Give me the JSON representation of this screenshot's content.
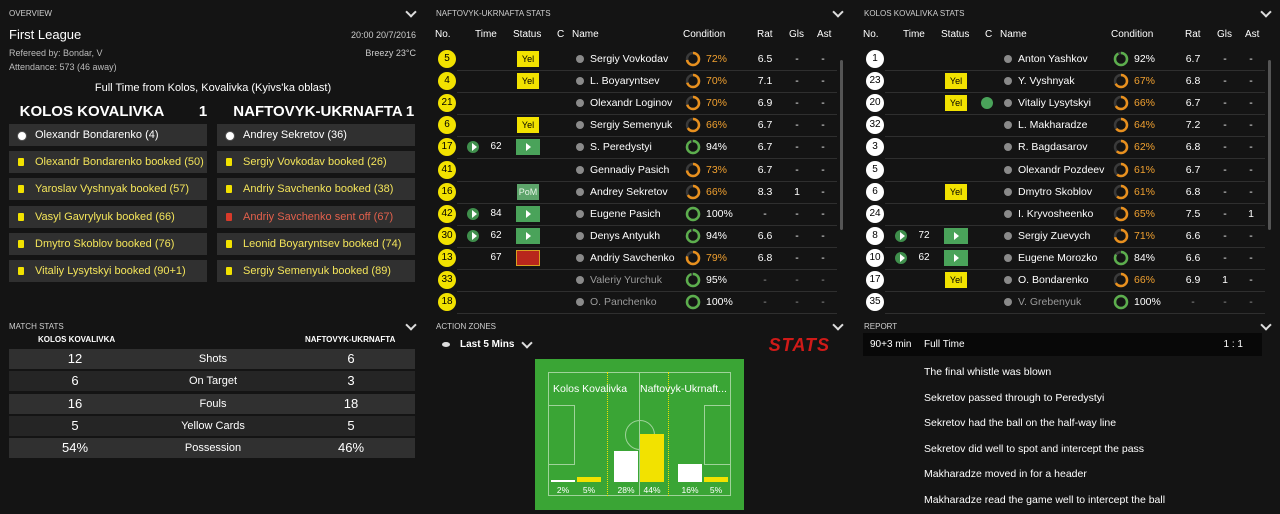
{
  "panels": {
    "overview": "OVERVIEW",
    "away_stats": "NAFTOVYK-UKRNAFTA STATS",
    "home_stats": "KOLOS KOVALIVKA STATS",
    "match_stats": "MATCH STATS",
    "action_zones": "ACTION ZONES",
    "report": "REPORT"
  },
  "overview": {
    "league": "First League",
    "datetime": "20:00 20/7/2016",
    "referee": "Refereed by: Bondar, V",
    "weather": "Breezy 23°C",
    "attendance": "Attendance: 573 (46 away)",
    "result": "Full Time from Kolos, Kovalivka (Kyivs'ka oblast)",
    "home": {
      "team": "KOLOS KOVALIVKA",
      "score": 1,
      "events": [
        {
          "kind": "goal",
          "text": "Olexandr Bondarenko (4)"
        },
        {
          "kind": "yellow",
          "text": "Olexandr Bondarenko booked (50)"
        },
        {
          "kind": "yellow",
          "text": "Yaroslav Vyshnyak booked (57)"
        },
        {
          "kind": "yellow",
          "text": "Vasyl Gavrylyuk booked (66)"
        },
        {
          "kind": "yellow",
          "text": "Dmytro Skoblov booked (76)"
        },
        {
          "kind": "yellow",
          "text": "Vitaliy Lysytskyi booked (90+1)"
        }
      ]
    },
    "away": {
      "team": "NAFTOVYK-UKRNAFTA",
      "score": 1,
      "events": [
        {
          "kind": "goal",
          "text": "Andrey Sekretov (36)"
        },
        {
          "kind": "yellow",
          "text": "Sergiy Vovkodav booked (26)"
        },
        {
          "kind": "yellow",
          "text": "Andriy Savchenko booked (38)"
        },
        {
          "kind": "red",
          "text": "Andriy Savchenko sent off (67)"
        },
        {
          "kind": "yellow",
          "text": "Leonid Boyaryntsev booked (74)"
        },
        {
          "kind": "yellow",
          "text": "Sergiy Semenyuk booked (89)"
        }
      ]
    }
  },
  "columns": [
    "No.",
    "Time",
    "Status",
    "C",
    "Name",
    "Condition",
    "Rat",
    "Gls",
    "Ast"
  ],
  "player_tables": [
    {
      "number_color": "#f2e200",
      "rows": [
        {
          "no": 5,
          "status": "Yel",
          "name": "Sergiy Vovkodav",
          "condition": 72,
          "condition_label": "72%",
          "rat": 6.5,
          "gls": "-",
          "ast": "-"
        },
        {
          "no": 4,
          "status": "Yel",
          "name": "L. Boyaryntsev",
          "condition": 70,
          "condition_label": "70%",
          "rat": 7.1,
          "gls": "-",
          "ast": "-"
        },
        {
          "no": 21,
          "name": "Olexandr Loginov",
          "condition": 70,
          "condition_label": "70%",
          "rat": 6.9,
          "gls": "-",
          "ast": "-"
        },
        {
          "no": 6,
          "status": "Yel",
          "name": "Sergiy Semenyuk",
          "condition": 66,
          "condition_label": "66%",
          "rat": 6.7,
          "gls": "-",
          "ast": "-"
        },
        {
          "no": 17,
          "time": 62,
          "sub_in": true,
          "status_icon": "sub",
          "name": "S. Peredystyi",
          "condition": 94,
          "condition_label": "94%",
          "rat": 6.7,
          "gls": "-",
          "ast": "-"
        },
        {
          "no": 41,
          "name": "Gennadiy Pasich",
          "condition": 73,
          "condition_label": "73%",
          "rat": 6.7,
          "gls": "-",
          "ast": "-"
        },
        {
          "no": 16,
          "status": "PoM",
          "name": "Andrey Sekretov",
          "condition": 66,
          "condition_label": "66%",
          "rat": 8.3,
          "gls": 1,
          "ast": "-"
        },
        {
          "no": 42,
          "time": 84,
          "sub_in": true,
          "status_icon": "sub",
          "name": "Eugene Pasich",
          "condition": 100,
          "condition_label": "100%",
          "rat": "-",
          "gls": "-",
          "ast": "-"
        },
        {
          "no": 30,
          "time": 62,
          "sub_in": true,
          "status_icon": "sub",
          "name": "Denys Antyukh",
          "condition": 94,
          "condition_label": "94%",
          "rat": 6.6,
          "gls": "-",
          "ast": "-"
        },
        {
          "no": 13,
          "time": 67,
          "status_icon": "red",
          "name": "Andriy Savchenko",
          "condition": 79,
          "condition_label": "79%",
          "rat": 6.8,
          "gls": "-",
          "ast": "-"
        },
        {
          "no": 33,
          "unused": true,
          "name": "Valeriy Yurchuk",
          "condition": 95,
          "condition_label": "95%",
          "rat": "-",
          "gls": "-",
          "ast": "-"
        },
        {
          "no": 18,
          "unused": true,
          "name": "O. Panchenko",
          "condition": 100,
          "condition_label": "100%",
          "rat": "-",
          "gls": "-",
          "ast": "-"
        }
      ]
    },
    {
      "number_color": "#ffffff",
      "rows": [
        {
          "no": 1,
          "name": "Anton Yashkov",
          "condition": 92,
          "condition_label": "92%",
          "rat": 6.7,
          "gls": "-",
          "ast": "-"
        },
        {
          "no": 23,
          "status": "Yel",
          "name": "Y. Vyshnyak",
          "condition": 67,
          "condition_label": "67%",
          "rat": 6.8,
          "gls": "-",
          "ast": "-"
        },
        {
          "no": 20,
          "status": "Yel",
          "captain": true,
          "name": "Vitaliy Lysytskyi",
          "condition": 66,
          "condition_label": "66%",
          "rat": 6.7,
          "gls": "-",
          "ast": "-"
        },
        {
          "no": 32,
          "name": "L. Makharadze",
          "condition": 64,
          "condition_label": "64%",
          "rat": 7.2,
          "gls": "-",
          "ast": "-"
        },
        {
          "no": 3,
          "name": "R. Bagdasarov",
          "condition": 62,
          "condition_label": "62%",
          "rat": 6.8,
          "gls": "-",
          "ast": "-"
        },
        {
          "no": 5,
          "name": "Olexandr Pozdeev",
          "condition": 61,
          "condition_label": "61%",
          "rat": 6.7,
          "gls": "-",
          "ast": "-"
        },
        {
          "no": 6,
          "status": "Yel",
          "name": "Dmytro Skoblov",
          "condition": 61,
          "condition_label": "61%",
          "rat": 6.8,
          "gls": "-",
          "ast": "-"
        },
        {
          "no": 24,
          "name": "I. Kryvosheenko",
          "condition": 65,
          "condition_label": "65%",
          "rat": 7.5,
          "gls": "-",
          "ast": 1
        },
        {
          "no": 8,
          "time": 72,
          "sub_in": true,
          "status_icon": "sub",
          "name": "Sergiy Zuevych",
          "condition": 71,
          "condition_label": "71%",
          "rat": 6.6,
          "gls": "-",
          "ast": "-"
        },
        {
          "no": 10,
          "time": 62,
          "sub_in": true,
          "status_icon": "sub",
          "name": "Eugene Morozko",
          "condition": 84,
          "condition_label": "84%",
          "rat": 6.6,
          "gls": "-",
          "ast": "-"
        },
        {
          "no": 17,
          "status": "Yel",
          "name": "O. Bondarenko",
          "condition": 66,
          "condition_label": "66%",
          "rat": 6.9,
          "gls": 1,
          "ast": "-"
        },
        {
          "no": 35,
          "unused": true,
          "name": "V. Grebenyuk",
          "condition": 100,
          "condition_label": "100%",
          "rat": "-",
          "gls": "-",
          "ast": "-"
        }
      ]
    }
  ],
  "match_stats": {
    "home": "KOLOS KOVALIVKA",
    "away": "NAFTOVYK-UKRNAFTA",
    "rows": [
      [
        12,
        "Shots",
        6
      ],
      [
        6,
        "On Target",
        3
      ],
      [
        16,
        "Fouls",
        18
      ],
      [
        5,
        "Yellow Cards",
        5
      ],
      [
        "54%",
        "Possession",
        "46%"
      ]
    ]
  },
  "action_zones": {
    "filter": "Last 5 Mins",
    "logo": "STATS"
  },
  "chart_data": {
    "type": "bar",
    "categories": [
      null,
      null,
      null
    ],
    "series": [
      {
        "name": "Kolos Kovalivka",
        "color": "#ffffff",
        "values": [
          2,
          28,
          16
        ],
        "value_labels": [
          "2%",
          "28%",
          "16%"
        ]
      },
      {
        "name": "Naftovyk-Ukrnaft...",
        "color": "#f2e200",
        "values": [
          5,
          44,
          5
        ],
        "value_labels": [
          "5%",
          "44%",
          "5%"
        ]
      }
    ]
  },
  "report": {
    "minute": "90+3 min",
    "event": "Full Time",
    "score": "1 : 1",
    "lines": [
      "The final whistle was blown",
      "Sekretov passed through to Peredystyi",
      "Sekretov had the ball on the half-way line",
      "Sekretov did well to spot and intercept the pass",
      "Makharadze moved in for a header",
      "Makharadze read the game well to intercept the ball"
    ]
  }
}
